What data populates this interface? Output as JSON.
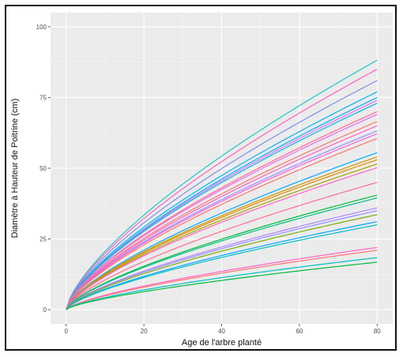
{
  "chart_data": {
    "type": "line",
    "title": "",
    "xlabel": "Age de l'arbre planté",
    "ylabel": "Diamètre à Hauteur de Poitrine (cm)",
    "xlim": [
      0,
      80
    ],
    "ylim": [
      0,
      100
    ],
    "x_ticks": [
      "0",
      "20",
      "40",
      "60",
      "80"
    ],
    "y_ticks": [
      "0",
      "25",
      "50",
      "75",
      "100"
    ],
    "grid": true,
    "legend": "none",
    "curve_model": "y = a * x^0.7",
    "series": [
      {
        "color": "#1fc7c7",
        "values": [
          [
            0,
            0
          ],
          [
            20,
            33.5
          ],
          [
            40,
            54.5
          ],
          [
            60,
            72.5
          ],
          [
            80,
            88.2
          ]
        ]
      },
      {
        "color": "#ff61c3",
        "values": [
          [
            0,
            0
          ],
          [
            20,
            32.3
          ],
          [
            40,
            52.5
          ],
          [
            60,
            69.8
          ],
          [
            80,
            85
          ]
        ]
      },
      {
        "color": "#7f8ee8",
        "values": [
          [
            0,
            0
          ],
          [
            20,
            30.8
          ],
          [
            40,
            50.0
          ],
          [
            60,
            66.5
          ],
          [
            80,
            81
          ]
        ]
      },
      {
        "color": "#00b4ef",
        "values": [
          [
            0,
            0
          ],
          [
            20,
            29.3
          ],
          [
            40,
            47.5
          ],
          [
            60,
            63.2
          ],
          [
            80,
            77
          ]
        ]
      },
      {
        "color": "#00b0f6",
        "values": [
          [
            0,
            0
          ],
          [
            20,
            28.5
          ],
          [
            40,
            46.3
          ],
          [
            60,
            61.6
          ],
          [
            80,
            75
          ]
        ]
      },
      {
        "color": "#e76bf3",
        "values": [
          [
            0,
            0
          ],
          [
            20,
            28.1
          ],
          [
            40,
            45.7
          ],
          [
            60,
            60.8
          ],
          [
            80,
            74
          ]
        ]
      },
      {
        "color": "#00bcd8",
        "values": [
          [
            0,
            0
          ],
          [
            20,
            27.7
          ],
          [
            40,
            45.1
          ],
          [
            60,
            59.9
          ],
          [
            80,
            73
          ]
        ]
      },
      {
        "color": "#ff6c91",
        "values": [
          [
            0,
            0
          ],
          [
            20,
            26.6
          ],
          [
            40,
            43.2
          ],
          [
            60,
            57.5
          ],
          [
            80,
            70
          ]
        ]
      },
      {
        "color": "#e76bf3",
        "values": [
          [
            0,
            0
          ],
          [
            20,
            26.2
          ],
          [
            40,
            42.6
          ],
          [
            60,
            56.6
          ],
          [
            80,
            69
          ]
        ]
      },
      {
        "color": "#f8766d",
        "values": [
          [
            0,
            0
          ],
          [
            20,
            25.3
          ],
          [
            40,
            41.1
          ],
          [
            60,
            54.6
          ],
          [
            80,
            66.5
          ]
        ]
      },
      {
        "color": "#ff61c3",
        "values": [
          [
            0,
            0
          ],
          [
            20,
            24.7
          ],
          [
            40,
            40.1
          ],
          [
            60,
            53.4
          ],
          [
            80,
            65
          ]
        ]
      },
      {
        "color": "#9590ff",
        "values": [
          [
            0,
            0
          ],
          [
            20,
            24.0
          ],
          [
            40,
            39.0
          ],
          [
            60,
            51.9
          ],
          [
            80,
            63.2
          ]
        ]
      },
      {
        "color": "#fd61d1",
        "values": [
          [
            0,
            0
          ],
          [
            20,
            23.6
          ],
          [
            40,
            38.4
          ],
          [
            60,
            51.1
          ],
          [
            80,
            62.2
          ]
        ]
      },
      {
        "color": "#f8766d",
        "values": [
          [
            0,
            0
          ],
          [
            20,
            23.0
          ],
          [
            40,
            37.4
          ],
          [
            60,
            49.7
          ],
          [
            80,
            60.5
          ]
        ]
      },
      {
        "color": "#00a9ff",
        "values": [
          [
            0,
            0
          ],
          [
            20,
            21.1
          ],
          [
            40,
            34.3
          ],
          [
            60,
            45.6
          ],
          [
            80,
            55.5
          ]
        ]
      },
      {
        "color": "#c99800",
        "values": [
          [
            0,
            0
          ],
          [
            20,
            20.5
          ],
          [
            40,
            33.4
          ],
          [
            60,
            44.4
          ],
          [
            80,
            54
          ]
        ]
      },
      {
        "color": "#e58700",
        "values": [
          [
            0,
            0
          ],
          [
            20,
            20.2
          ],
          [
            40,
            32.8
          ],
          [
            60,
            43.6
          ],
          [
            80,
            53
          ]
        ]
      },
      {
        "color": "#a3a500",
        "values": [
          [
            0,
            0
          ],
          [
            20,
            19.6
          ],
          [
            40,
            31.8
          ],
          [
            60,
            42.2
          ],
          [
            80,
            51.5
          ]
        ]
      },
      {
        "color": "#ff61c3",
        "values": [
          [
            0,
            0
          ],
          [
            20,
            19.1
          ],
          [
            40,
            31.0
          ],
          [
            60,
            41.3
          ],
          [
            80,
            50.2
          ]
        ]
      },
      {
        "color": "#ff6c91",
        "values": [
          [
            0,
            0
          ],
          [
            20,
            17.1
          ],
          [
            40,
            27.8
          ],
          [
            60,
            37.0
          ],
          [
            80,
            45
          ]
        ]
      },
      {
        "color": "#00ba38",
        "values": [
          [
            0,
            0
          ],
          [
            20,
            15.4
          ],
          [
            40,
            25.1
          ],
          [
            60,
            33.3
          ],
          [
            80,
            40.5
          ]
        ]
      },
      {
        "color": "#00c08b",
        "values": [
          [
            0,
            0
          ],
          [
            20,
            15.0
          ],
          [
            40,
            24.4
          ],
          [
            60,
            32.5
          ],
          [
            80,
            39.5
          ]
        ]
      },
      {
        "color": "#b385ff",
        "values": [
          [
            0,
            0
          ],
          [
            20,
            13.7
          ],
          [
            40,
            22.3
          ],
          [
            60,
            29.6
          ],
          [
            80,
            36
          ]
        ]
      },
      {
        "color": "#9590ff",
        "values": [
          [
            0,
            0
          ],
          [
            20,
            13.3
          ],
          [
            40,
            21.6
          ],
          [
            60,
            28.8
          ],
          [
            80,
            35
          ]
        ]
      },
      {
        "color": "#7cae00",
        "values": [
          [
            0,
            0
          ],
          [
            20,
            12.8
          ],
          [
            40,
            20.8
          ],
          [
            60,
            27.6
          ],
          [
            80,
            33.6
          ]
        ]
      },
      {
        "color": "#00a9ff",
        "values": [
          [
            0,
            0
          ],
          [
            20,
            11.8
          ],
          [
            40,
            19.2
          ],
          [
            60,
            25.6
          ],
          [
            80,
            31.1
          ]
        ]
      },
      {
        "color": "#00bfc4",
        "values": [
          [
            0,
            0
          ],
          [
            20,
            11.4
          ],
          [
            40,
            18.5
          ],
          [
            60,
            24.6
          ],
          [
            80,
            30
          ]
        ]
      },
      {
        "color": "#ff61c3",
        "values": [
          [
            0,
            0
          ],
          [
            20,
            8.4
          ],
          [
            40,
            13.6
          ],
          [
            60,
            18.1
          ],
          [
            80,
            22
          ]
        ]
      },
      {
        "color": "#f8766d",
        "values": [
          [
            0,
            0
          ],
          [
            20,
            8.0
          ],
          [
            40,
            13.0
          ],
          [
            60,
            17.3
          ],
          [
            80,
            21
          ]
        ]
      },
      {
        "color": "#00bfc4",
        "values": [
          [
            0,
            0
          ],
          [
            20,
            7.0
          ],
          [
            40,
            11.3
          ],
          [
            60,
            15.1
          ],
          [
            80,
            18.4
          ]
        ]
      },
      {
        "color": "#00ba38",
        "values": [
          [
            0,
            0
          ],
          [
            20,
            6.4
          ],
          [
            40,
            10.4
          ],
          [
            60,
            13.8
          ],
          [
            80,
            16.8
          ]
        ]
      }
    ]
  }
}
